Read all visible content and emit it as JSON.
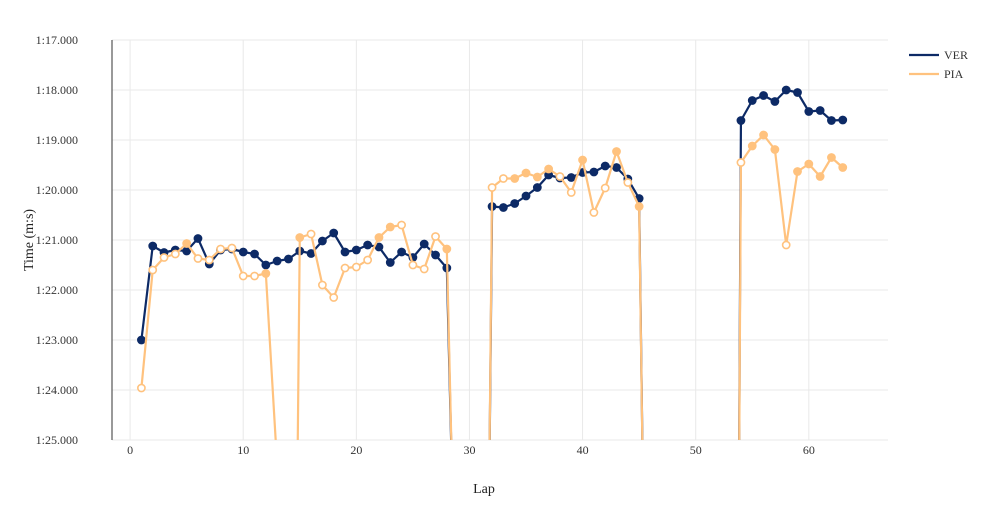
{
  "chart_data": {
    "type": "line",
    "title": "",
    "xlabel": "Lap",
    "ylabel": "Time (m:s)",
    "xlim": [
      -1.6,
      67
    ],
    "ylim": [
      85,
      77
    ],
    "y_reversed": true,
    "grid": true,
    "legend_position": "top-right",
    "x_ticks": [
      0,
      10,
      20,
      30,
      40,
      50,
      60
    ],
    "y_ticks": [
      77,
      78,
      79,
      80,
      81,
      82,
      83,
      84,
      85
    ],
    "y_tick_labels": [
      "1:17.000",
      "1:18.000",
      "1:19.000",
      "1:20.000",
      "1:21.000",
      "1:22.000",
      "1:23.000",
      "1:24.000",
      "1:25.000"
    ],
    "series": [
      {
        "name": "VER",
        "color": "#0d2a66",
        "points": [
          [
            1,
            83.0
          ],
          [
            2,
            81.12
          ],
          [
            3,
            81.25
          ],
          [
            4,
            81.2
          ],
          [
            5,
            81.22
          ],
          [
            6,
            80.97
          ],
          [
            7,
            81.48
          ],
          [
            8,
            81.2
          ],
          [
            9,
            81.18
          ],
          [
            10,
            81.24
          ],
          [
            11,
            81.28
          ],
          [
            12,
            81.5
          ],
          [
            13,
            81.42
          ],
          [
            14,
            81.38
          ],
          [
            15,
            81.22
          ],
          [
            16,
            81.27
          ],
          [
            17,
            81.02
          ],
          [
            18,
            80.86
          ],
          [
            19,
            81.24
          ],
          [
            20,
            81.2
          ],
          [
            21,
            81.1
          ],
          [
            22,
            81.14
          ],
          [
            23,
            81.45
          ],
          [
            24,
            81.24
          ],
          [
            25,
            81.35
          ],
          [
            26,
            81.08
          ],
          [
            27,
            81.3
          ],
          [
            28,
            81.56
          ],
          [
            28.6,
            87
          ],
          null,
          [
            31.7,
            87
          ],
          [
            32,
            80.33
          ],
          [
            33,
            80.35
          ],
          [
            34,
            80.27
          ],
          [
            35,
            80.12
          ],
          [
            36,
            79.95
          ],
          [
            37,
            79.7
          ],
          [
            38,
            79.76
          ],
          [
            39,
            79.75
          ],
          [
            40,
            79.65
          ],
          [
            41,
            79.64
          ],
          [
            42,
            79.52
          ],
          [
            43,
            79.55
          ],
          [
            44,
            79.78
          ],
          [
            45,
            80.17
          ],
          [
            45.4,
            87
          ],
          null,
          [
            53.8,
            87
          ],
          [
            54,
            78.61
          ],
          [
            55,
            78.21
          ],
          [
            56,
            78.11
          ],
          [
            57,
            78.23
          ],
          [
            58,
            78.0
          ],
          [
            59,
            78.05
          ],
          [
            60,
            78.43
          ],
          [
            61,
            78.41
          ],
          [
            62,
            78.61
          ],
          [
            63,
            78.6
          ]
        ]
      },
      {
        "name": "PIA",
        "color": "#ffc27e",
        "points": [
          [
            1,
            83.96
          ],
          [
            2,
            81.6
          ],
          [
            3,
            81.35
          ],
          [
            4,
            81.28
          ],
          [
            5,
            81.07
          ],
          [
            6,
            81.37
          ],
          [
            7,
            81.4
          ],
          [
            8,
            81.18
          ],
          [
            9,
            81.16
          ],
          [
            10,
            81.72
          ],
          [
            11,
            81.72
          ],
          [
            12,
            81.67
          ],
          [
            13,
            85.5
          ],
          null,
          [
            14.8,
            85.5
          ],
          [
            15,
            80.95
          ],
          [
            16,
            80.88
          ],
          [
            17,
            81.9
          ],
          [
            18,
            82.15
          ],
          [
            19,
            81.56
          ],
          [
            20,
            81.54
          ],
          [
            21,
            81.4
          ],
          [
            22,
            80.95
          ],
          [
            23,
            80.74
          ],
          [
            24,
            80.7
          ],
          [
            25,
            81.5
          ],
          [
            26,
            81.58
          ],
          [
            27,
            80.93
          ],
          [
            28,
            81.18
          ],
          [
            28.6,
            87
          ],
          null,
          [
            31.7,
            87
          ],
          [
            32,
            79.95
          ],
          [
            33,
            79.77
          ],
          [
            34,
            79.77
          ],
          [
            35,
            79.66
          ],
          [
            36,
            79.74
          ],
          [
            37,
            79.58
          ],
          [
            38,
            79.73
          ],
          [
            39,
            80.05
          ],
          [
            40,
            79.4
          ],
          [
            41,
            80.45
          ],
          [
            42,
            79.96
          ],
          [
            43,
            79.23
          ],
          [
            44,
            79.85
          ],
          [
            45,
            80.33
          ],
          [
            45.4,
            87
          ],
          null,
          [
            53.8,
            87
          ],
          [
            54,
            79.45
          ],
          [
            55,
            79.12
          ],
          [
            56,
            78.9
          ],
          [
            57,
            79.19
          ],
          [
            58,
            81.1
          ],
          [
            59,
            79.63
          ],
          [
            60,
            79.48
          ],
          [
            61,
            79.73
          ],
          [
            62,
            79.35
          ],
          [
            63,
            79.55
          ]
        ]
      }
    ]
  }
}
